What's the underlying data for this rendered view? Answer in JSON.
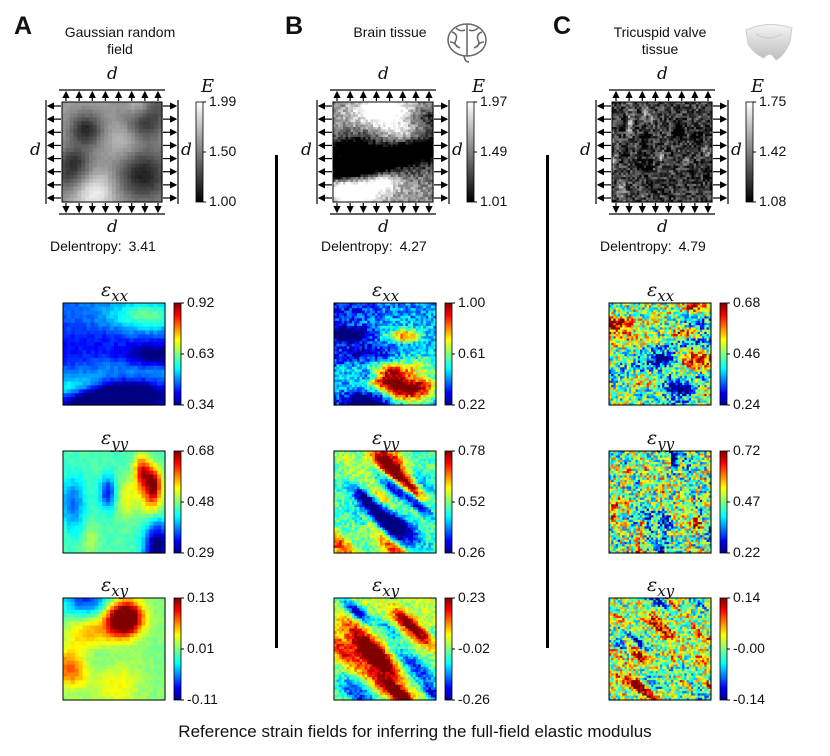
{
  "caption": "Reference strain fields for inferring the full-field elastic modulus",
  "modulus_symbol": "E",
  "dim_symbol": "d",
  "delentropy_label": "Delentropy:",
  "panels": [
    {
      "letter": "A",
      "title_line1": "Gaussian random",
      "title_line2": "field",
      "icon": "none",
      "E_ticks": [
        "1.99",
        "1.50",
        "1.00"
      ],
      "delentropy": "3.41",
      "strains": [
        {
          "label": "ε",
          "sub": "xx",
          "ticks": [
            "0.92",
            "0.63",
            "0.34"
          ]
        },
        {
          "label": "ε",
          "sub": "yy",
          "ticks": [
            "0.68",
            "0.48",
            "0.29"
          ]
        },
        {
          "label": "ε",
          "sub": "xy",
          "ticks": [
            "0.13",
            "0.01",
            "-0.11"
          ]
        }
      ]
    },
    {
      "letter": "B",
      "title_line1": "Brain tissue",
      "title_line2": "",
      "icon": "brain-icon",
      "E_ticks": [
        "1.97",
        "1.49",
        "1.01"
      ],
      "delentropy": "4.27",
      "strains": [
        {
          "label": "ε",
          "sub": "xx",
          "ticks": [
            "1.00",
            "0.61",
            "0.22"
          ]
        },
        {
          "label": "ε",
          "sub": "yy",
          "ticks": [
            "0.78",
            "0.52",
            "0.26"
          ]
        },
        {
          "label": "ε",
          "sub": "xy",
          "ticks": [
            "0.23",
            "-0.02",
            "-0.26"
          ]
        }
      ]
    },
    {
      "letter": "C",
      "title_line1": "Tricuspid valve",
      "title_line2": "tissue",
      "icon": "valve-icon",
      "E_ticks": [
        "1.75",
        "1.42",
        "1.08"
      ],
      "delentropy": "4.79",
      "strains": [
        {
          "label": "ε",
          "sub": "xx",
          "ticks": [
            "0.68",
            "0.46",
            "0.24"
          ]
        },
        {
          "label": "ε",
          "sub": "yy",
          "ticks": [
            "0.72",
            "0.47",
            "0.22"
          ]
        },
        {
          "label": "ε",
          "sub": "xy",
          "ticks": [
            "0.14",
            "-0.00",
            "-0.14"
          ]
        }
      ]
    }
  ]
}
